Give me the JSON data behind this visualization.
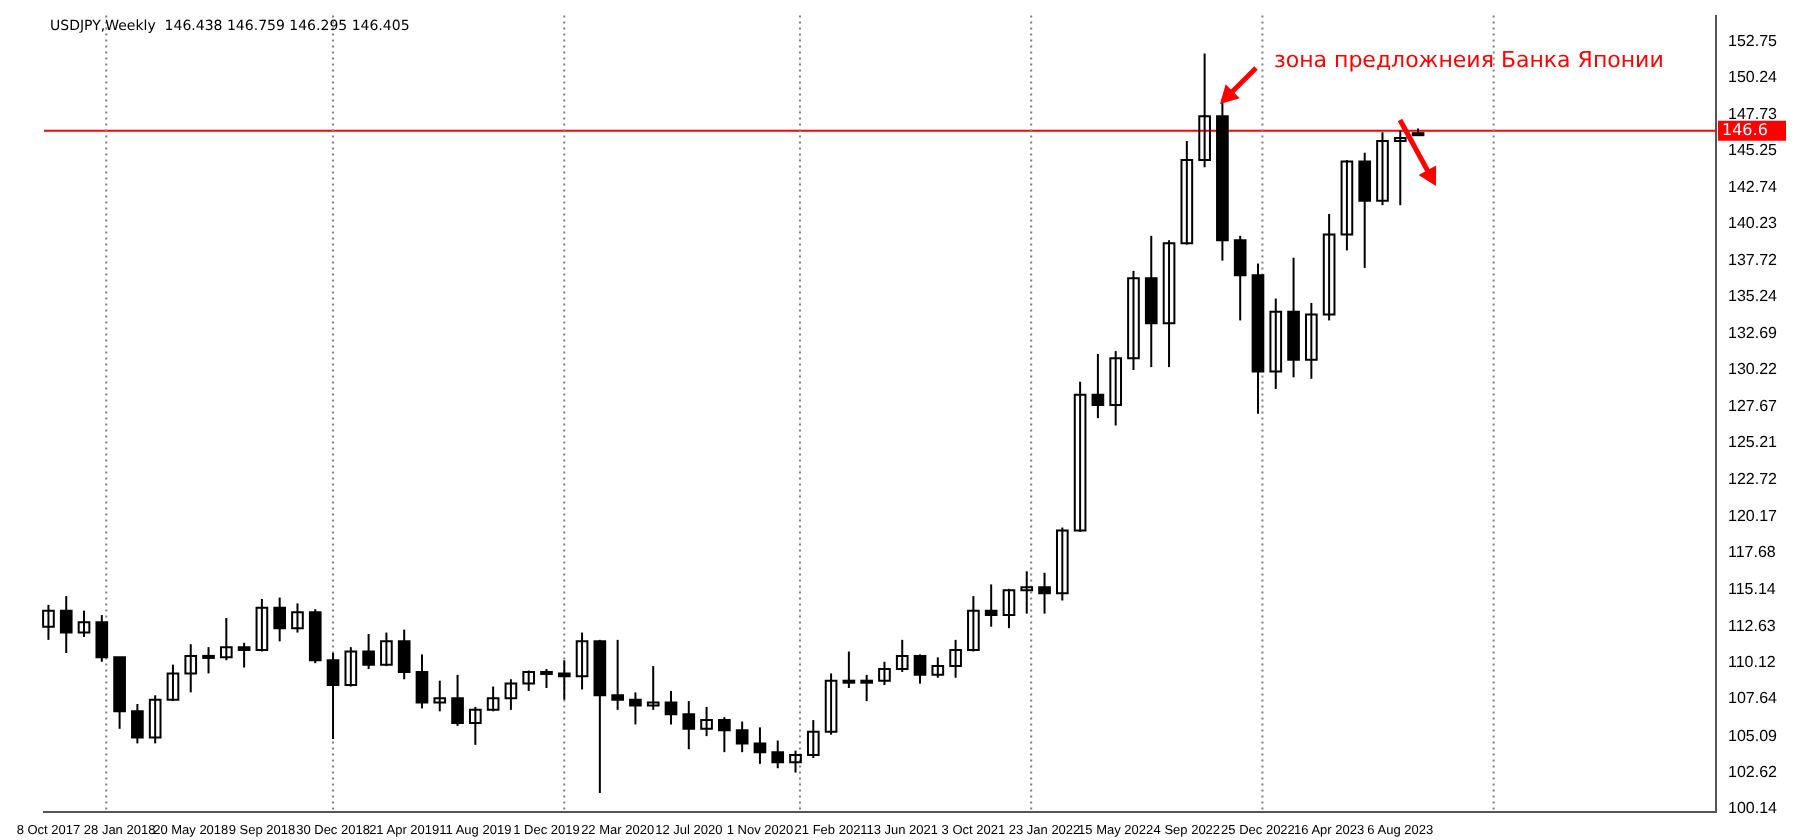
{
  "chart_data": {
    "type": "candlestick",
    "title": "USDJPY,Weekly  146.438 146.759 146.295 146.405",
    "color": "#000000",
    "legend": false,
    "annotations": [
      {
        "text": "зона предложнеия Банка Японии",
        "x": "2022-12-25",
        "y": 151.4
      }
    ],
    "x": [
      "2017-10-08",
      "2017-11-05",
      "2017-12-03",
      "2017-12-31",
      "2018-01-28",
      "2018-02-25",
      "2018-03-25",
      "2018-04-22",
      "2018-05-20",
      "2018-06-17",
      "2018-07-15",
      "2018-08-12",
      "2018-09-09",
      "2018-10-07",
      "2018-11-04",
      "2018-12-02",
      "2018-12-30",
      "2019-01-27",
      "2019-02-24",
      "2019-03-24",
      "2019-04-21",
      "2019-05-19",
      "2019-06-16",
      "2019-07-14",
      "2019-08-11",
      "2019-09-08",
      "2019-10-06",
      "2019-11-03",
      "2019-12-01",
      "2019-12-29",
      "2020-01-26",
      "2020-02-23",
      "2020-03-22",
      "2020-04-19",
      "2020-05-17",
      "2020-06-14",
      "2020-07-12",
      "2020-08-09",
      "2020-09-06",
      "2020-10-04",
      "2020-11-01",
      "2020-11-29",
      "2020-12-27",
      "2021-01-24",
      "2021-02-21",
      "2021-03-21",
      "2021-04-18",
      "2021-05-16",
      "2021-06-13",
      "2021-07-11",
      "2021-08-08",
      "2021-09-05",
      "2021-10-03",
      "2021-10-31",
      "2021-11-28",
      "2021-12-26",
      "2022-01-23",
      "2022-02-20",
      "2022-03-20",
      "2022-04-17",
      "2022-05-15",
      "2022-06-12",
      "2022-07-10",
      "2022-08-07",
      "2022-09-04",
      "2022-10-02",
      "2022-10-30",
      "2022-11-27",
      "2022-12-25",
      "2023-01-22",
      "2023-02-19",
      "2023-03-19",
      "2023-04-16",
      "2023-05-14",
      "2023-06-11",
      "2023-07-09",
      "2023-08-06",
      "2023-09-03"
    ],
    "ohlc": [
      [
        112.6,
        114.1,
        111.7,
        113.7
      ],
      [
        113.7,
        114.7,
        110.8,
        112.2
      ],
      [
        112.2,
        113.7,
        111.9,
        112.9
      ],
      [
        112.9,
        113.4,
        110.2,
        110.5
      ],
      [
        110.5,
        110.5,
        105.6,
        106.8
      ],
      [
        106.8,
        107.3,
        104.6,
        105.0
      ],
      [
        105.0,
        107.9,
        104.6,
        107.6
      ],
      [
        107.6,
        110.0,
        107.5,
        109.4
      ],
      [
        109.4,
        111.4,
        108.1,
        110.6
      ],
      [
        110.6,
        111.2,
        109.4,
        110.5
      ],
      [
        110.5,
        113.2,
        110.3,
        111.2
      ],
      [
        111.2,
        111.5,
        109.8,
        111.0
      ],
      [
        111.0,
        114.5,
        110.9,
        113.9
      ],
      [
        113.9,
        114.6,
        111.6,
        112.5
      ],
      [
        112.5,
        114.2,
        112.2,
        113.6
      ],
      [
        113.6,
        113.8,
        110.1,
        110.3
      ],
      [
        110.3,
        110.8,
        104.9,
        108.6
      ],
      [
        108.6,
        111.2,
        108.5,
        110.9
      ],
      [
        110.9,
        112.1,
        109.7,
        110.0
      ],
      [
        110.0,
        112.2,
        109.9,
        111.6
      ],
      [
        111.6,
        112.4,
        109.0,
        109.5
      ],
      [
        109.5,
        110.7,
        107.0,
        107.4
      ],
      [
        107.4,
        108.9,
        106.8,
        107.7
      ],
      [
        107.7,
        109.3,
        105.8,
        106.0
      ],
      [
        106.0,
        107.1,
        104.5,
        106.9
      ],
      [
        106.9,
        108.5,
        106.8,
        107.7
      ],
      [
        107.7,
        109.0,
        106.9,
        108.7
      ],
      [
        108.7,
        109.6,
        108.2,
        109.5
      ],
      [
        109.5,
        109.7,
        108.4,
        109.4
      ],
      [
        109.4,
        110.3,
        107.6,
        109.2
      ],
      [
        109.2,
        112.2,
        108.3,
        111.6
      ],
      [
        111.6,
        111.7,
        101.2,
        107.9
      ],
      [
        107.9,
        111.7,
        106.9,
        107.6
      ],
      [
        107.6,
        108.1,
        105.9,
        107.2
      ],
      [
        107.2,
        109.9,
        106.9,
        107.4
      ],
      [
        107.4,
        108.2,
        105.9,
        106.6
      ],
      [
        106.6,
        107.5,
        104.2,
        105.6
      ],
      [
        105.6,
        107.1,
        105.1,
        106.2
      ],
      [
        106.2,
        106.4,
        104.0,
        105.5
      ],
      [
        105.5,
        106.1,
        104.0,
        104.6
      ],
      [
        104.6,
        105.7,
        103.2,
        104.0
      ],
      [
        104.0,
        104.8,
        102.9,
        103.3
      ],
      [
        103.3,
        104.1,
        102.6,
        103.8
      ],
      [
        103.8,
        106.2,
        103.6,
        105.4
      ],
      [
        105.4,
        109.4,
        105.2,
        108.9
      ],
      [
        108.9,
        110.9,
        108.4,
        108.8
      ],
      [
        108.8,
        109.3,
        107.5,
        108.9
      ],
      [
        108.9,
        110.2,
        108.6,
        109.7
      ],
      [
        109.7,
        111.7,
        109.5,
        110.6
      ],
      [
        110.6,
        110.7,
        108.7,
        109.3
      ],
      [
        109.3,
        110.5,
        109.1,
        109.9
      ],
      [
        109.9,
        111.7,
        109.1,
        111.0
      ],
      [
        111.0,
        114.7,
        110.9,
        113.7
      ],
      [
        113.7,
        115.5,
        112.6,
        113.4
      ],
      [
        113.4,
        115.2,
        112.5,
        115.1
      ],
      [
        115.1,
        116.4,
        113.5,
        115.3
      ],
      [
        115.3,
        116.3,
        113.5,
        114.9
      ],
      [
        114.9,
        119.4,
        114.4,
        119.2
      ],
      [
        119.2,
        129.4,
        119.1,
        128.5
      ],
      [
        128.5,
        131.3,
        126.9,
        127.8
      ],
      [
        127.8,
        131.5,
        126.4,
        131.0
      ],
      [
        131.0,
        137.0,
        130.2,
        136.5
      ],
      [
        136.5,
        139.4,
        130.4,
        133.4
      ],
      [
        133.4,
        139.1,
        130.4,
        138.9
      ],
      [
        138.9,
        145.9,
        138.8,
        144.6
      ],
      [
        144.6,
        151.9,
        144.1,
        147.6
      ],
      [
        147.6,
        148.8,
        137.7,
        139.1
      ],
      [
        139.1,
        139.4,
        133.6,
        136.7
      ],
      [
        136.7,
        137.5,
        127.2,
        130.1
      ],
      [
        130.1,
        135.1,
        128.9,
        134.2
      ],
      [
        134.2,
        137.9,
        129.7,
        130.9
      ],
      [
        130.9,
        134.8,
        129.6,
        134.0
      ],
      [
        134.0,
        140.9,
        133.6,
        139.5
      ],
      [
        139.5,
        144.6,
        138.4,
        144.5
      ],
      [
        144.5,
        145.1,
        137.2,
        141.8
      ],
      [
        141.8,
        146.5,
        141.5,
        145.9
      ],
      [
        145.9,
        146.6,
        141.5,
        146.1
      ],
      [
        146.438,
        146.759,
        146.295,
        146.405
      ]
    ],
    "xlim": [
      "2017-10-01",
      "2024-12-15"
    ],
    "xticks": [
      {
        "value": "2017-10-08",
        "label": "8 Oct 2017"
      },
      {
        "value": "2018-01-28",
        "label": "28 Jan 2018"
      },
      {
        "value": "2018-05-20",
        "label": "20 May 2018"
      },
      {
        "value": "2018-09-09",
        "label": "9 Sep 2018"
      },
      {
        "value": "2018-12-30",
        "label": "30 Dec 2018"
      },
      {
        "value": "2019-04-21",
        "label": "21 Apr 2019"
      },
      {
        "value": "2019-08-11",
        "label": "11 Aug 2019"
      },
      {
        "value": "2019-12-01",
        "label": "1 Dec 2019"
      },
      {
        "value": "2020-03-22",
        "label": "22 Mar 2020"
      },
      {
        "value": "2020-07-12",
        "label": "12 Jul 2020"
      },
      {
        "value": "2020-11-01",
        "label": "1 Nov 2020"
      },
      {
        "value": "2021-02-21",
        "label": "21 Feb 2021"
      },
      {
        "value": "2021-06-13",
        "label": "13 Jun 2021"
      },
      {
        "value": "2021-10-03",
        "label": "3 Oct 2021"
      },
      {
        "value": "2022-01-23",
        "label": "23 Jan 2022"
      },
      {
        "value": "2022-05-15",
        "label": "15 May 2022"
      },
      {
        "value": "2022-09-04",
        "label": "4 Sep 2022"
      },
      {
        "value": "2022-12-25",
        "label": "25 Dec 2022"
      },
      {
        "value": "2023-04-16",
        "label": "16 Apr 2023"
      },
      {
        "value": "2023-08-06",
        "label": "6 Aug 2023"
      }
    ],
    "ylim": [
      99.87,
      154.5
    ],
    "yticks": [
      100.14,
      102.62,
      105.09,
      107.64,
      110.12,
      112.63,
      115.14,
      117.68,
      120.17,
      122.72,
      125.21,
      127.67,
      130.22,
      132.69,
      135.24,
      137.72,
      140.23,
      142.74,
      145.25,
      147.73,
      150.24,
      152.75
    ],
    "ref_lines": [
      {
        "axis": "y",
        "value": 146.6,
        "label": "146.6",
        "color": "#ff0000",
        "line_style": "solid"
      },
      {
        "axis": "x",
        "value": "2018-01-07",
        "color": "#808080",
        "line_style": "dotted"
      },
      {
        "axis": "x",
        "value": "2018-12-30",
        "color": "#808080",
        "line_style": "dotted"
      },
      {
        "axis": "x",
        "value": "2019-12-29",
        "color": "#808080",
        "line_style": "dotted"
      },
      {
        "axis": "x",
        "value": "2021-01-03",
        "color": "#808080",
        "line_style": "dotted"
      },
      {
        "axis": "x",
        "value": "2022-01-02",
        "color": "#808080",
        "line_style": "dotted"
      },
      {
        "axis": "x",
        "value": "2023-01-01",
        "color": "#808080",
        "line_style": "dotted"
      },
      {
        "axis": "x",
        "value": "2023-12-31",
        "color": "#808080",
        "line_style": "dotted"
      }
    ]
  }
}
